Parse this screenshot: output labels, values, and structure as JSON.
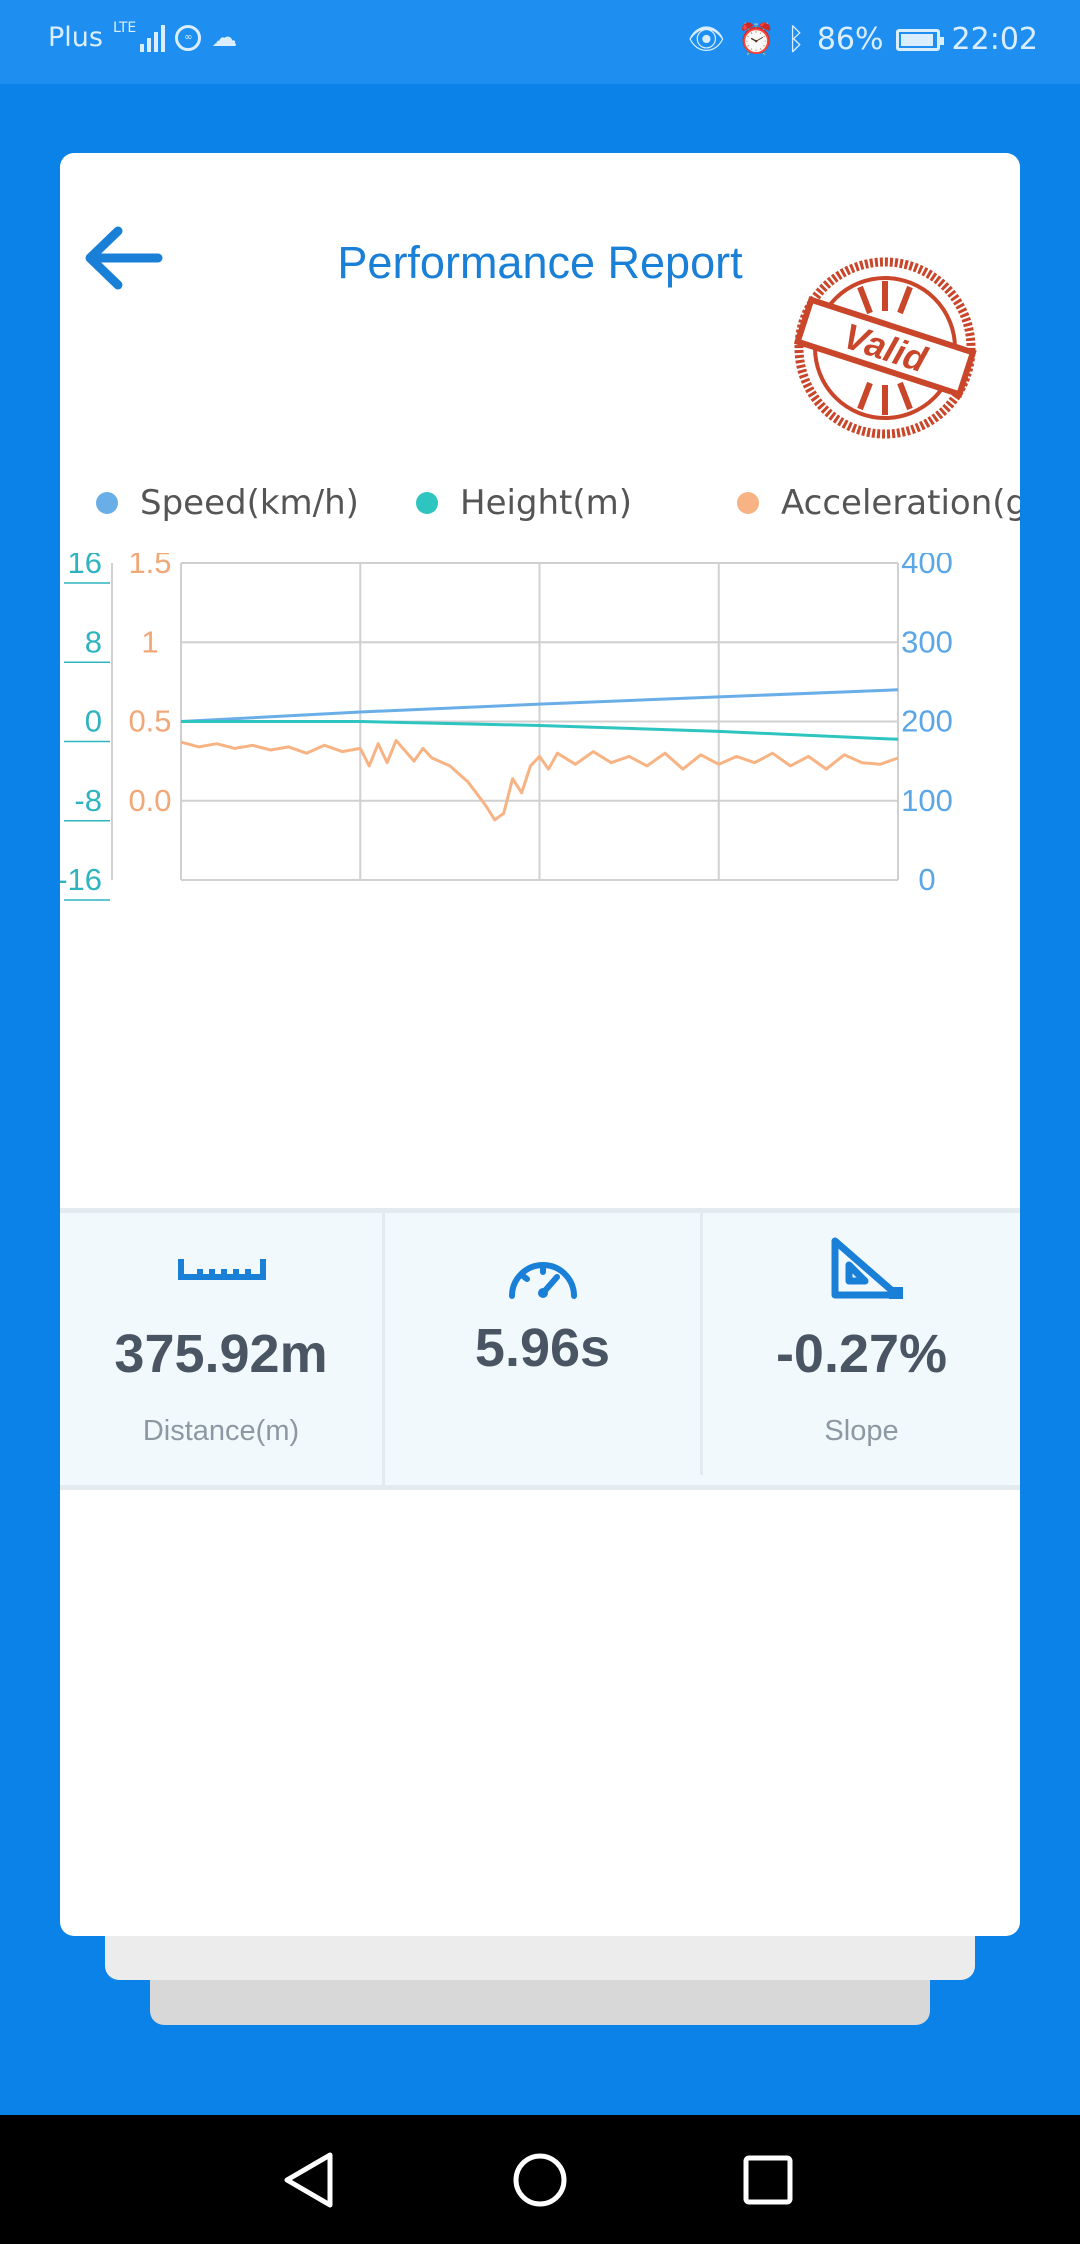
{
  "status": {
    "carrier": "Plus",
    "network": "LTE",
    "battery": "86%",
    "time": "22:02"
  },
  "header": {
    "title": "Performance Report",
    "stamp_text": "Valid",
    "back_icon": "arrow-left-icon"
  },
  "colors": {
    "accent": "#1A7FD6",
    "background": "#0A82E8",
    "speed": "#6AAEE8",
    "height": "#2EC4C0",
    "acceleration": "#F7B383",
    "stamp": "#C9462B"
  },
  "chart_data": {
    "type": "line",
    "legend": [
      "Speed(km/h)",
      "Height(m)",
      "Acceleration(g)"
    ],
    "legend_position": "top",
    "grid": true,
    "axes": {
      "height_ticks": [
        "16",
        "8",
        "0",
        "-8",
        "-16"
      ],
      "height_ylim": [
        -16,
        16
      ],
      "accel_ticks": [
        "1.5",
        "1",
        "0.5",
        "0.0"
      ],
      "accel_ylim": [
        -0.5,
        1.5
      ],
      "speed_ticks": [
        "400",
        "300",
        "200",
        "100",
        "0"
      ],
      "speed_ylim": [
        0,
        400
      ]
    },
    "x_range": [
      0,
      4
    ],
    "series": [
      {
        "name": "Speed(km/h)",
        "axis": "right",
        "x": [
          0,
          1,
          2,
          3,
          4
        ],
        "values": [
          200,
          212,
          222,
          231,
          240
        ]
      },
      {
        "name": "Height(m)",
        "axis": "left",
        "x": [
          0,
          1,
          2,
          3,
          4
        ],
        "values": [
          0,
          0,
          -0.4,
          -1.0,
          -1.8
        ]
      },
      {
        "name": "Acceleration(g)",
        "axis": "left2",
        "x": [
          0,
          0.1,
          0.2,
          0.3,
          0.4,
          0.5,
          0.6,
          0.7,
          0.8,
          0.9,
          1.0,
          1.05,
          1.1,
          1.15,
          1.2,
          1.3,
          1.35,
          1.4,
          1.5,
          1.6,
          1.7,
          1.75,
          1.8,
          1.85,
          1.9,
          1.95,
          2.0,
          2.05,
          2.1,
          2.2,
          2.3,
          2.4,
          2.5,
          2.6,
          2.7,
          2.8,
          2.9,
          3.0,
          3.1,
          3.2,
          3.3,
          3.4,
          3.5,
          3.6,
          3.7,
          3.8,
          3.9,
          4.0
        ],
        "values": [
          0.37,
          0.34,
          0.36,
          0.33,
          0.35,
          0.32,
          0.34,
          0.3,
          0.35,
          0.31,
          0.33,
          0.22,
          0.36,
          0.24,
          0.38,
          0.25,
          0.33,
          0.27,
          0.22,
          0.12,
          -0.03,
          -0.12,
          -0.08,
          0.14,
          0.05,
          0.22,
          0.28,
          0.2,
          0.3,
          0.23,
          0.31,
          0.24,
          0.28,
          0.22,
          0.3,
          0.2,
          0.29,
          0.23,
          0.28,
          0.24,
          0.3,
          0.22,
          0.28,
          0.2,
          0.29,
          0.24,
          0.23,
          0.27
        ]
      }
    ]
  },
  "stats": [
    {
      "icon": "ruler-icon",
      "value": "375.92m",
      "label": "Distance(m)"
    },
    {
      "icon": "speedometer-icon",
      "value": "5.96s",
      "label": ""
    },
    {
      "icon": "slope-icon",
      "value": "-0.27%",
      "label": "Slope"
    }
  ],
  "nav": [
    "back-triangle-icon",
    "home-circle-icon",
    "recents-square-icon"
  ]
}
